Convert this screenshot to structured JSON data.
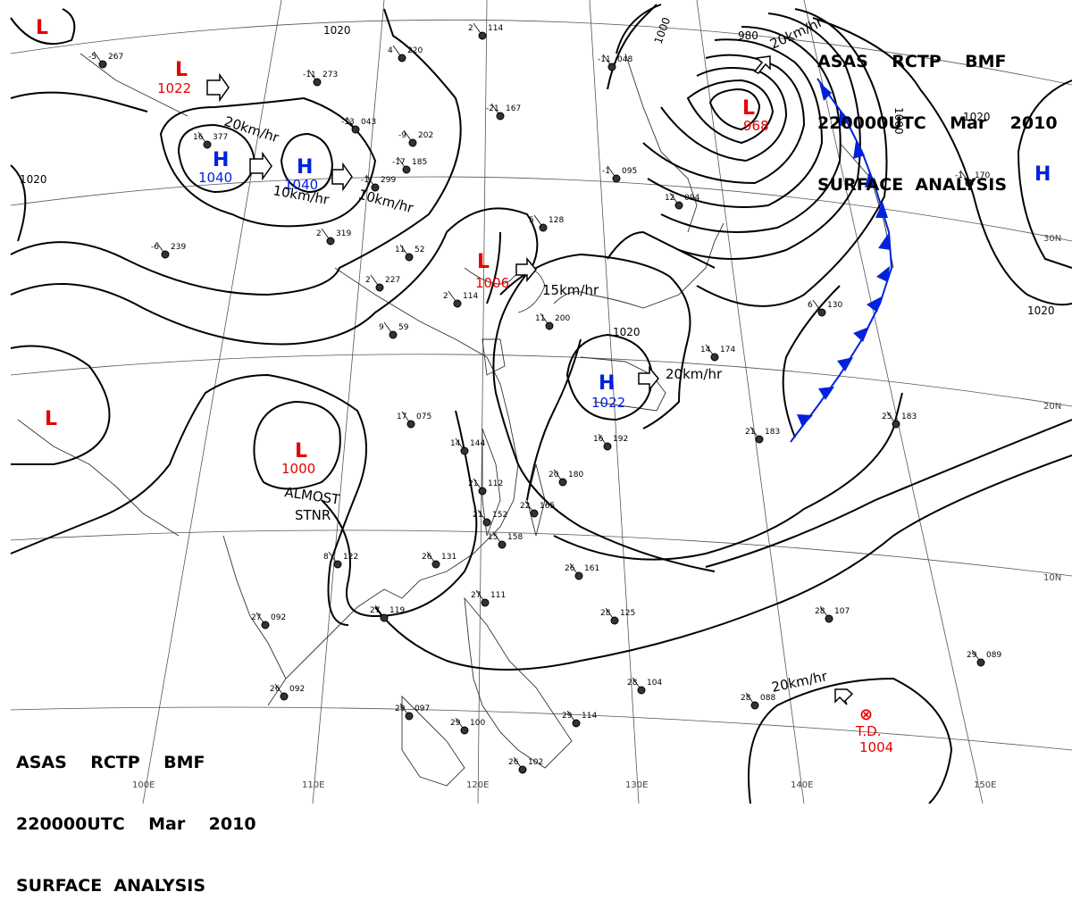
{
  "header": {
    "line1": "ASAS    RCTP    BMF",
    "line2": "220000UTC    Mar    2010",
    "line3": "SURFACE  ANALYSIS"
  },
  "colors": {
    "isobar": "#000000",
    "low": "#e60000",
    "high": "#0022dd",
    "front": "#0022dd"
  },
  "isobar_labels": [
    {
      "id": "iso-1020-nw",
      "text": "1020"
    },
    {
      "id": "iso-1020-w",
      "text": "1020"
    },
    {
      "id": "iso-1020-japan",
      "text": "1020"
    },
    {
      "id": "iso-1020-ne",
      "text": "1020"
    },
    {
      "id": "iso-1020-e",
      "text": "1020"
    },
    {
      "id": "iso-1000",
      "text": "1000"
    },
    {
      "id": "iso-980",
      "text": "980"
    },
    {
      "id": "iso-1000-b",
      "text": "1000"
    }
  ],
  "pressure_centers": [
    {
      "id": "low-nw-corner",
      "type": "L",
      "value": ""
    },
    {
      "id": "low-mongolia",
      "type": "L",
      "value": "1022"
    },
    {
      "id": "high-siberia-1",
      "type": "H",
      "value": "1040"
    },
    {
      "id": "high-siberia-2",
      "type": "H",
      "value": "1040"
    },
    {
      "id": "low-kamchatka",
      "type": "L",
      "value": "968"
    },
    {
      "id": "low-yellow-sea",
      "type": "L",
      "value": "1006"
    },
    {
      "id": "high-japan",
      "type": "H",
      "value": "1022"
    },
    {
      "id": "low-tibet",
      "type": "L",
      "value": ""
    },
    {
      "id": "low-china",
      "type": "L",
      "value": "1000"
    },
    {
      "id": "high-pacific",
      "type": "H",
      "value": ""
    },
    {
      "id": "td-pacific",
      "type": "T.D.",
      "value": "1004"
    }
  ],
  "motion_labels": [
    {
      "id": "motion-20-nw",
      "text": "20km/hr"
    },
    {
      "id": "motion-10-a",
      "text": "10km/hr"
    },
    {
      "id": "motion-10-b",
      "text": "10km/hr"
    },
    {
      "id": "motion-20-kam",
      "text": "20km/hr"
    },
    {
      "id": "motion-15",
      "text": "15km/hr"
    },
    {
      "id": "motion-20-japan",
      "text": "20km/hr"
    },
    {
      "id": "motion-20-td",
      "text": "20km/hr"
    }
  ],
  "notes": {
    "almost": "ALMOST",
    "stnr": "STNR"
  },
  "latitude_labels": [
    "30N",
    "20N",
    "10N"
  ],
  "longitude_labels": [
    "100E",
    "110E",
    "120E",
    "130E",
    "140E",
    "150E"
  ],
  "station_plots": [
    {
      "id": "st-1",
      "temp": "-5",
      "pres": "267"
    },
    {
      "id": "st-2",
      "temp": "-11",
      "pres": "273"
    },
    {
      "id": "st-3",
      "temp": "-13",
      "pres": "043"
    },
    {
      "id": "st-4",
      "temp": "-9",
      "pres": "202"
    },
    {
      "id": "st-5",
      "temp": "-21",
      "pres": "167"
    },
    {
      "id": "st-6",
      "temp": "2",
      "pres": "114"
    },
    {
      "id": "st-7",
      "temp": "4",
      "pres": "220"
    },
    {
      "id": "st-8",
      "temp": "16",
      "pres": "377"
    },
    {
      "id": "st-9",
      "temp": "-1",
      "pres": "299"
    },
    {
      "id": "st-10",
      "temp": "2",
      "pres": "319"
    },
    {
      "id": "st-11",
      "temp": "-6",
      "pres": "239"
    },
    {
      "id": "st-12",
      "temp": "-17",
      "pres": "185"
    },
    {
      "id": "st-13",
      "temp": "2",
      "pres": "227"
    },
    {
      "id": "st-14",
      "temp": "11",
      "pres": "52"
    },
    {
      "id": "st-15",
      "temp": "5",
      "pres": "128"
    },
    {
      "id": "st-16",
      "temp": "2",
      "pres": "114"
    },
    {
      "id": "st-17",
      "temp": "9",
      "pres": "59"
    },
    {
      "id": "st-18",
      "temp": "-11",
      "pres": "048"
    },
    {
      "id": "st-19",
      "temp": "-1",
      "pres": "095"
    },
    {
      "id": "st-20",
      "temp": "12",
      "pres": "094"
    },
    {
      "id": "st-21",
      "temp": "17",
      "pres": "075"
    },
    {
      "id": "st-22",
      "temp": "14",
      "pres": "144"
    },
    {
      "id": "st-23",
      "temp": "16",
      "pres": "192"
    },
    {
      "id": "st-24",
      "temp": "20",
      "pres": "180"
    },
    {
      "id": "st-25",
      "temp": "21",
      "pres": "112"
    },
    {
      "id": "st-26",
      "temp": "22",
      "pres": "165"
    },
    {
      "id": "st-27",
      "temp": "21",
      "pres": "152"
    },
    {
      "id": "st-28",
      "temp": "26",
      "pres": "131"
    },
    {
      "id": "st-29",
      "temp": "26",
      "pres": "161"
    },
    {
      "id": "st-30",
      "temp": "28",
      "pres": "125"
    },
    {
      "id": "st-31",
      "temp": "28",
      "pres": "104"
    },
    {
      "id": "st-32",
      "temp": "28",
      "pres": "107"
    },
    {
      "id": "st-33",
      "temp": "25",
      "pres": "183"
    },
    {
      "id": "st-34",
      "temp": "21",
      "pres": "183"
    },
    {
      "id": "st-35",
      "temp": "29",
      "pres": "089"
    },
    {
      "id": "st-36",
      "temp": "28",
      "pres": "088"
    },
    {
      "id": "st-37",
      "temp": "29",
      "pres": "097"
    },
    {
      "id": "st-38",
      "temp": "29",
      "pres": "100"
    },
    {
      "id": "st-39",
      "temp": "26",
      "pres": "102"
    },
    {
      "id": "st-40",
      "temp": "26",
      "pres": "092"
    },
    {
      "id": "st-41",
      "temp": "27",
      "pres": "092"
    },
    {
      "id": "st-42",
      "temp": "27",
      "pres": "119"
    },
    {
      "id": "st-43",
      "temp": "27",
      "pres": "111"
    },
    {
      "id": "st-44",
      "temp": "6",
      "pres": "130"
    },
    {
      "id": "st-45",
      "temp": "14",
      "pres": "174"
    },
    {
      "id": "st-46",
      "temp": "11",
      "pres": "200"
    },
    {
      "id": "st-47",
      "temp": "15",
      "pres": "158"
    },
    {
      "id": "st-48",
      "temp": "8",
      "pres": "122"
    },
    {
      "id": "st-49",
      "temp": "-1",
      "pres": "170"
    },
    {
      "id": "st-50",
      "temp": "29",
      "pres": "114"
    }
  ]
}
